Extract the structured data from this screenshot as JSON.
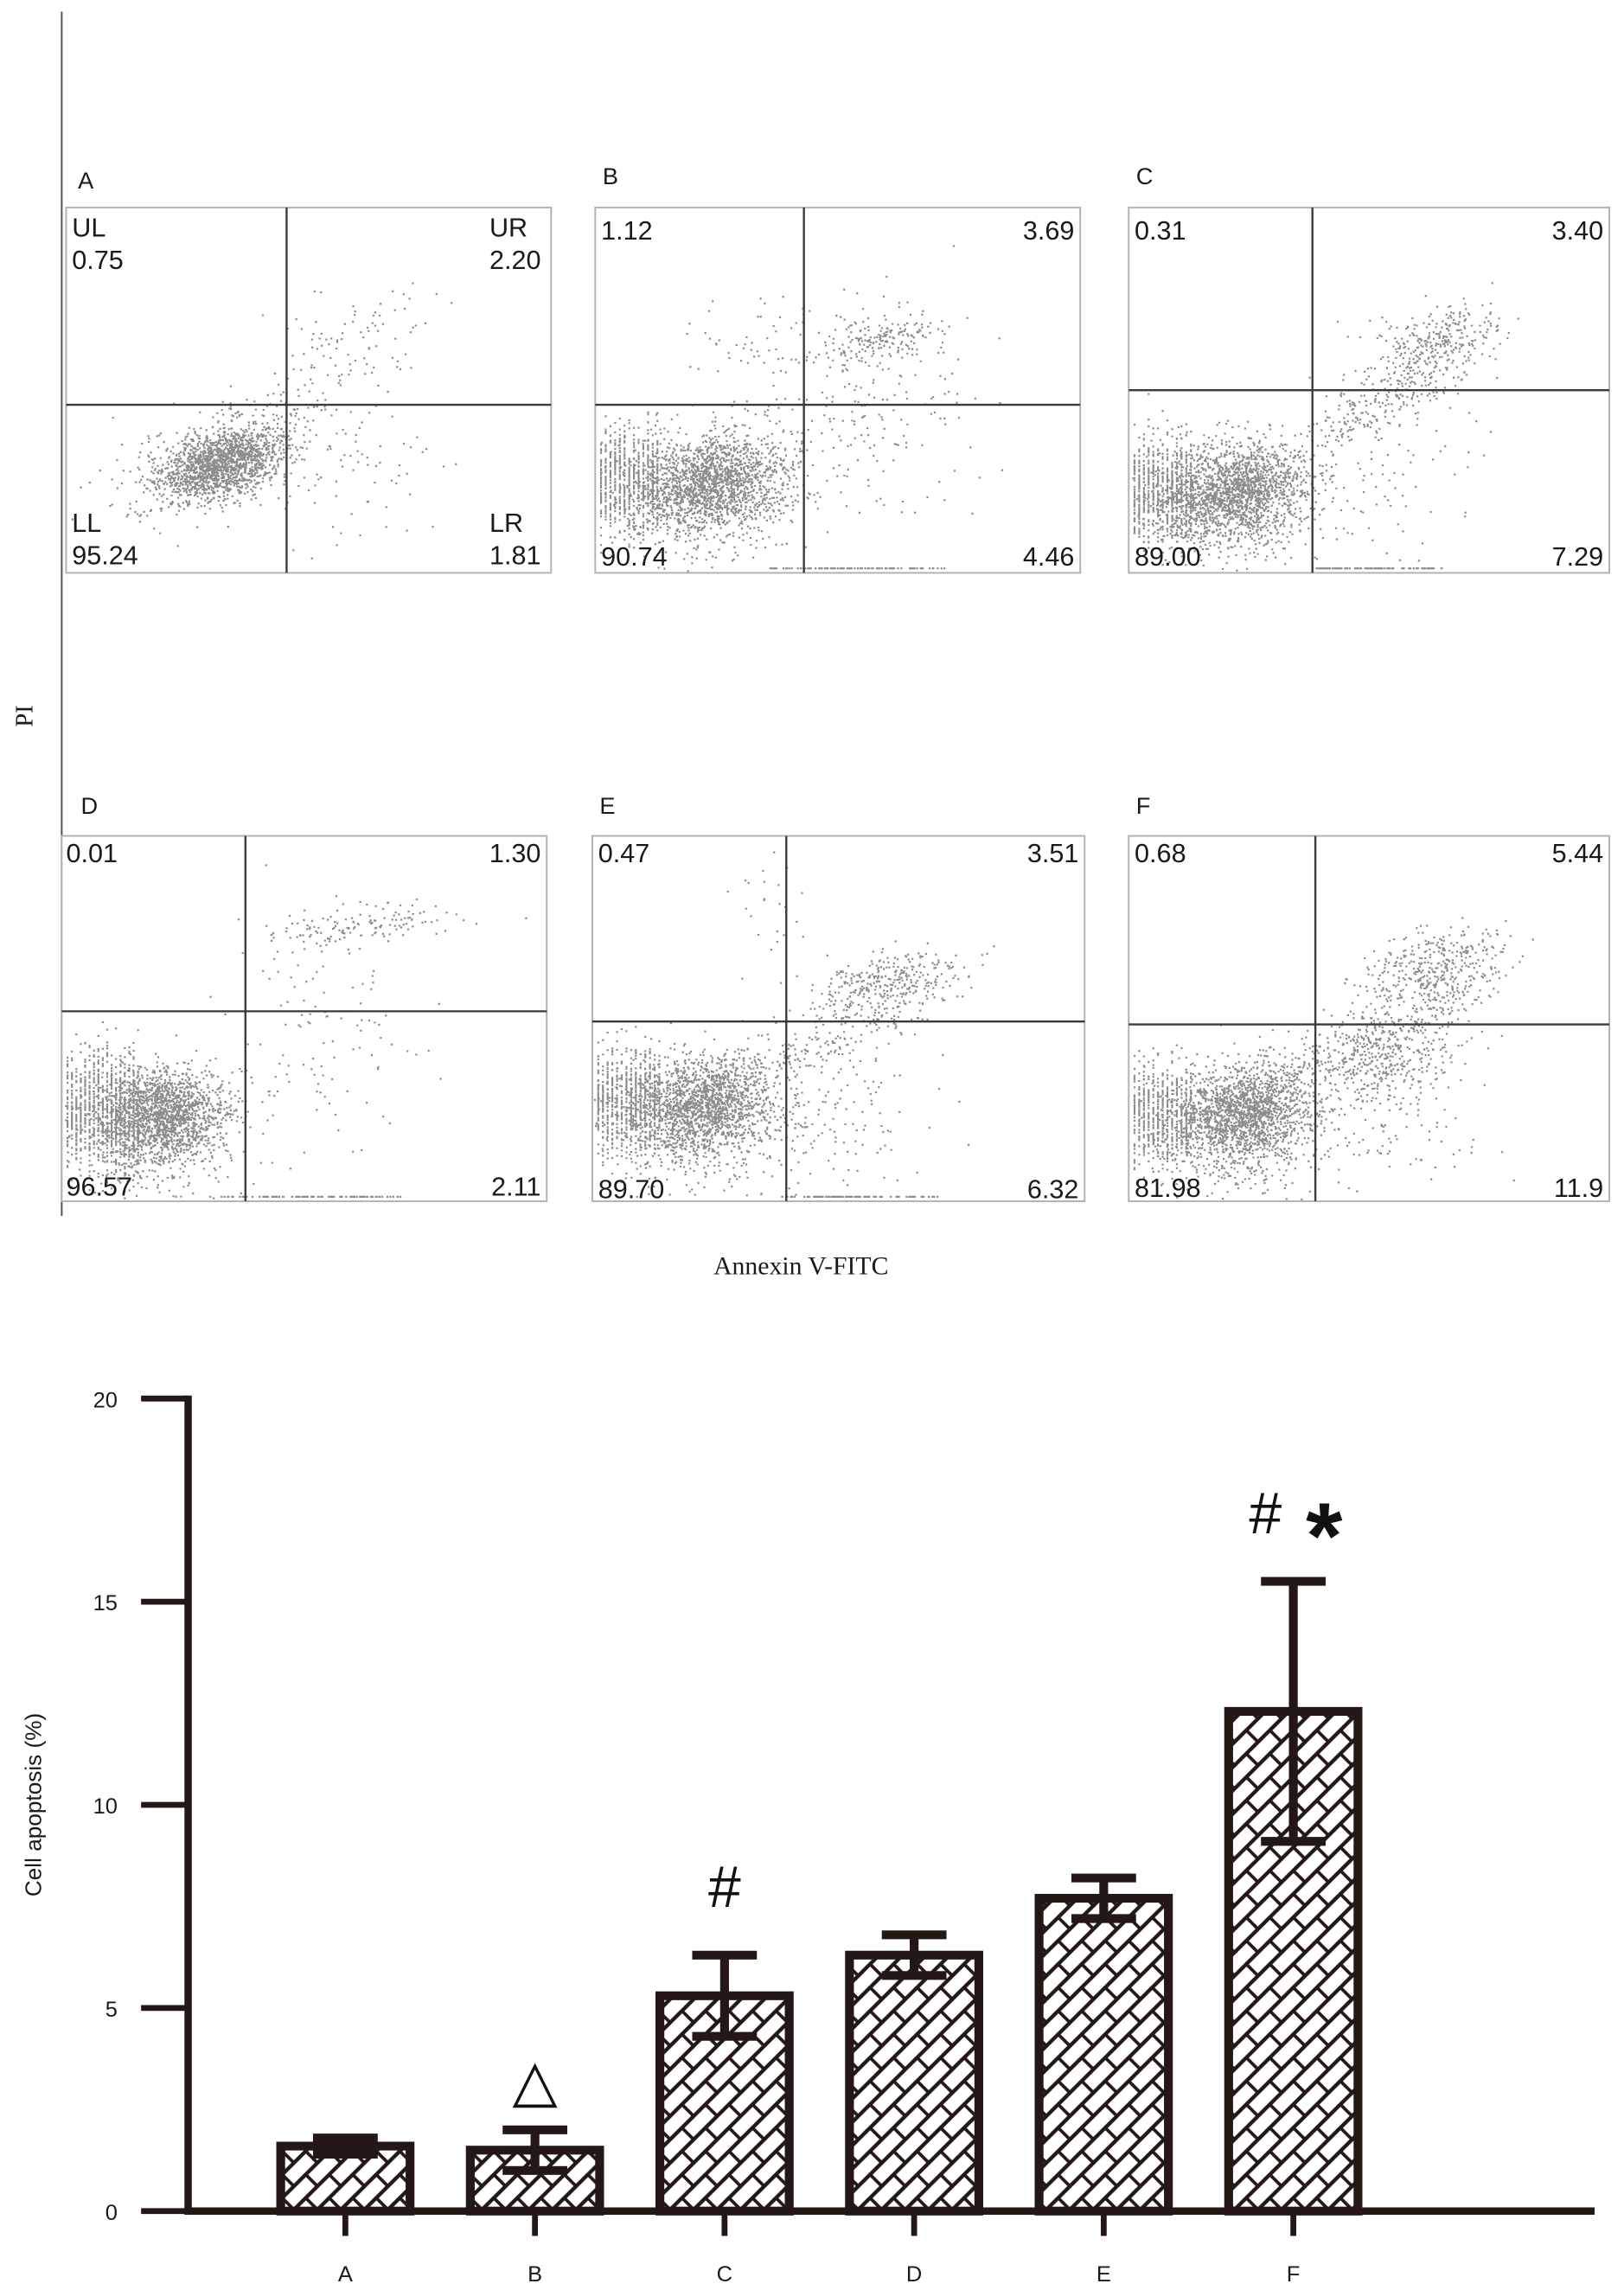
{
  "colors": {
    "text": "#1a1a1a",
    "dots": "#8c8c8c",
    "gate_lines": "#3a3a3a",
    "panel_border": "#b4b4b4",
    "frame_line": "#555555",
    "bar_edge": "#231815",
    "bar_fill": "#ffffff"
  },
  "chart_data": [
    {
      "type": "scatter",
      "xlabel": "Annexin V-FITC",
      "ylabel": "PI",
      "panels": [
        {
          "label": "A",
          "names": {
            "UL": "UL",
            "UR": "UR",
            "LL": "LL",
            "LR": "LR"
          },
          "UL": "0.75",
          "UR": "2.20",
          "LL": "95.24",
          "LR": "1.81"
        },
        {
          "label": "B",
          "UL": "1.12",
          "UR": "3.69",
          "LL": "90.74",
          "LR": "4.46"
        },
        {
          "label": "C",
          "UL": "0.31",
          "UR": "3.40",
          "LL": "89.00",
          "LR": "7.29"
        },
        {
          "label": "D",
          "UL": "0.01",
          "UR": "1.30",
          "LL": "96.57",
          "LR": "2.11"
        },
        {
          "label": "E",
          "UL": "0.47",
          "UR": "3.51",
          "LL": "89.70",
          "LR": "6.32"
        },
        {
          "label": "F",
          "UL": "0.68",
          "UR": "5.44",
          "LL": "81.98",
          "LR": "11.9"
        }
      ]
    },
    {
      "type": "bar",
      "categories": [
        "A",
        "B",
        "C",
        "D",
        "E",
        "F"
      ],
      "values": [
        1.6,
        1.5,
        5.3,
        6.3,
        7.7,
        12.3
      ],
      "errors": [
        0.2,
        0.5,
        1.0,
        0.5,
        0.5,
        3.2
      ],
      "ylabel": "Cell apoptosis (%)",
      "ylim": [
        0,
        20
      ],
      "yticks": [
        0,
        5,
        10,
        15,
        20
      ],
      "grid": false,
      "pattern": "diagonal hatch",
      "annotations": [
        {
          "category": "B",
          "text": "△"
        },
        {
          "category": "C",
          "text": "#"
        },
        {
          "category": "F",
          "text": "#"
        },
        {
          "category": "F",
          "text": "*"
        }
      ]
    }
  ]
}
